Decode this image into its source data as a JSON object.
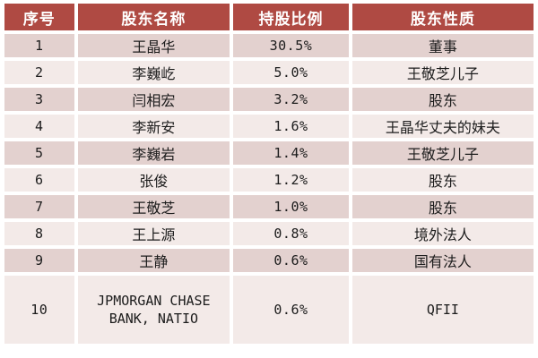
{
  "table": {
    "title_semantic": "top-ten-shareholders-table",
    "columns": [
      "序号",
      "股东名称",
      "持股比例",
      "股东性质"
    ],
    "rows": [
      {
        "no": "1",
        "name": "王晶华",
        "ratio": "30.5%",
        "nature": "董事"
      },
      {
        "no": "2",
        "name": "李巍屹",
        "ratio": "5.0%",
        "nature": "王敬芝儿子"
      },
      {
        "no": "3",
        "name": "闫相宏",
        "ratio": "3.2%",
        "nature": "股东"
      },
      {
        "no": "4",
        "name": "李新安",
        "ratio": "1.6%",
        "nature": "王晶华丈夫的妹夫"
      },
      {
        "no": "5",
        "name": "李巍岩",
        "ratio": "1.4%",
        "nature": "王敬芝儿子"
      },
      {
        "no": "6",
        "name": "张俊",
        "ratio": "1.2%",
        "nature": "股东"
      },
      {
        "no": "7",
        "name": "王敬芝",
        "ratio": "1.0%",
        "nature": "股东"
      },
      {
        "no": "8",
        "name": "王上源",
        "ratio": "0.8%",
        "nature": "境外法人"
      },
      {
        "no": "9",
        "name": "王静",
        "ratio": "0.6%",
        "nature": "国有法人"
      },
      {
        "no": "10",
        "name": "JPMORGAN CHASE BANK, NATIO",
        "ratio": "0.6%",
        "nature": "QFII"
      }
    ]
  },
  "colors": {
    "header_bg": "#AF4A43",
    "header_text": "#FFFFFF",
    "row_odd_bg": "#E3D1CF",
    "row_even_bg": "#F3EAE8",
    "cell_text": "#1C1C1C",
    "page_bg": "#FFFFFF"
  }
}
